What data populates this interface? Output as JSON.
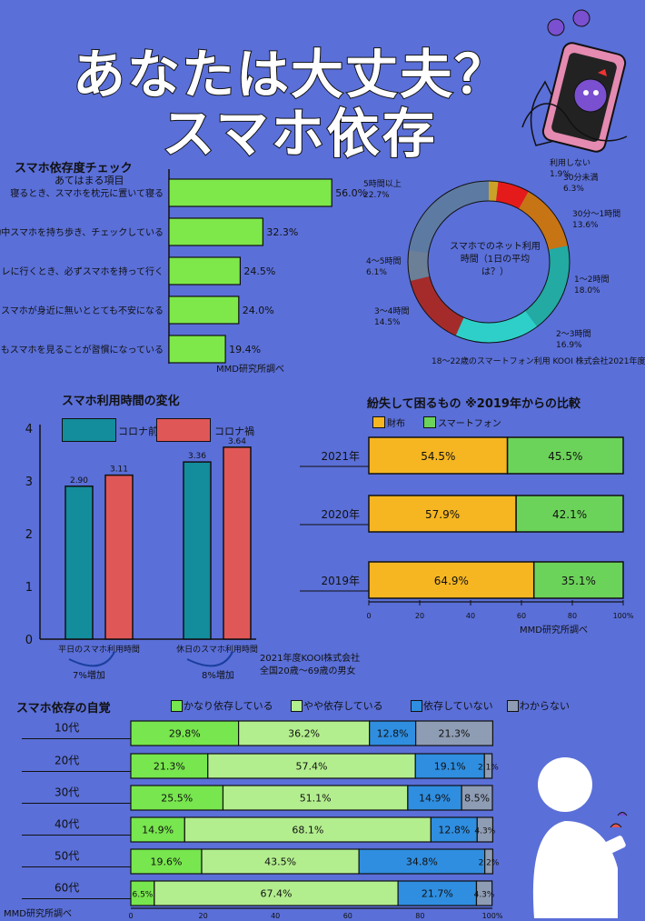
{
  "title_line1": "あなたは大丈夫？",
  "title_line2": "スマホ依存",
  "check": {
    "title": "スマホ依存度チェック",
    "subtitle": "あてはまる項目",
    "source": "MMD研究所調べ",
    "colors": {
      "bar": "#7ee84a"
    },
    "chart_data": {
      "type": "bar",
      "categories": [
        "寝るとき、スマホを枕元に置いて寝る",
        "移動中スマホを持ち歩き、チェックしている",
        "トイレに行くとき、必ずスマホを持って行く",
        "スマホが身近に無いととても不安になる",
        "食事中もスマホを見ることが習慣になっている"
      ],
      "values": [
        56.0,
        32.3,
        24.5,
        24.0,
        19.4
      ],
      "value_labels": [
        "56.0%",
        "32.3%",
        "24.5%",
        "24.0%",
        "19.4%"
      ]
    }
  },
  "donut": {
    "center_label": "スマホでのネット利用時間（1日の平均は？）",
    "source": "18～22歳のスマートフォン利用 KOOI 株式会社2021年度",
    "chart_data": {
      "type": "pie",
      "labels": [
        "利用しない",
        "30分未満",
        "30分～1時間",
        "1～2時間",
        "2～3時間",
        "3～4時間",
        "4～5時間",
        "5時間以上"
      ],
      "values": [
        1.9,
        6.3,
        13.6,
        18.0,
        16.9,
        14.5,
        6.1,
        22.7
      ],
      "value_labels": [
        "1.9%",
        "6.3%",
        "13.6%",
        "18.0%",
        "16.9%",
        "14.5%",
        "6.1%",
        "22.7%"
      ],
      "colors": [
        "#c9a227",
        "#e51b1b",
        "#c77414",
        "#22aaa3",
        "#2ecfc8",
        "#a52b2b",
        "#6b7f96",
        "#5d7ba2"
      ]
    }
  },
  "usage": {
    "title": "スマホ利用時間の変化",
    "legend_before": "コロナ前",
    "legend_after": "コロナ禍",
    "note1": "2021年度KOOI株式会社",
    "note2": "全国20歳～69歳の男女",
    "increase1": "7%増加",
    "increase2": "8%増加",
    "colors": {
      "before": "#138c9c",
      "after": "#e05757"
    },
    "chart_data": {
      "type": "bar",
      "categories": [
        "平日のスマホ利用時間",
        "休日のスマホ利用時間"
      ],
      "series": [
        {
          "name": "コロナ前",
          "values": [
            2.9,
            3.36
          ]
        },
        {
          "name": "コロナ禍",
          "values": [
            3.11,
            3.64
          ]
        }
      ],
      "value_labels": [
        [
          "2.90",
          "3.11"
        ],
        [
          "3.36",
          "3.64"
        ]
      ],
      "yticks": [
        "0",
        "1",
        "2",
        "3",
        "4"
      ],
      "ylim": [
        0,
        4
      ]
    }
  },
  "lost": {
    "title": "紛失して困るもの ※2019年からの比較",
    "legend_wallet": "財布",
    "legend_phone": "スマートフォン",
    "source": "MMD研究所調べ",
    "colors": {
      "wallet": "#f5b622",
      "phone": "#6cd35a"
    },
    "chart_data": {
      "type": "bar",
      "categories": [
        "2021年",
        "2020年",
        "2019年"
      ],
      "series": [
        {
          "name": "財布",
          "values": [
            54.5,
            57.9,
            64.9
          ]
        },
        {
          "name": "スマートフォン",
          "values": [
            45.5,
            42.1,
            35.1
          ]
        }
      ],
      "value_labels": [
        [
          "54.5%",
          "45.5%"
        ],
        [
          "57.9%",
          "42.1%"
        ],
        [
          "64.9%",
          "35.1%"
        ]
      ],
      "xticks": [
        "0",
        "20",
        "40",
        "60",
        "80",
        "100%"
      ]
    }
  },
  "awareness": {
    "title": "スマホ依存の自覚",
    "source": "MMD研究所調べ",
    "legend": [
      "かなり依存している",
      "やや依存している",
      "依存していない",
      "わからない"
    ],
    "colors": [
      "#78e64e",
      "#b3ee8e",
      "#2f8ee0",
      "#8e9cb4"
    ],
    "chart_data": {
      "type": "bar",
      "categories": [
        "10代",
        "20代",
        "30代",
        "40代",
        "50代",
        "60代"
      ],
      "series": [
        {
          "name": "かなり依存している",
          "values": [
            29.8,
            21.3,
            25.5,
            14.9,
            19.6,
            6.5
          ]
        },
        {
          "name": "やや依存している",
          "values": [
            36.2,
            57.4,
            51.1,
            68.1,
            43.5,
            67.4
          ]
        },
        {
          "name": "依存していない",
          "values": [
            12.8,
            19.1,
            14.9,
            12.8,
            34.8,
            21.7
          ]
        },
        {
          "name": "わからない",
          "values": [
            21.3,
            2.1,
            8.5,
            4.3,
            2.2,
            4.3
          ]
        }
      ],
      "value_labels": [
        [
          "29.8%",
          "36.2%",
          "12.8%",
          "21.3%"
        ],
        [
          "21.3%",
          "57.4%",
          "19.1%",
          "2.1%"
        ],
        [
          "25.5%",
          "51.1%",
          "14.9%",
          "8.5%"
        ],
        [
          "14.9%",
          "68.1%",
          "12.8%",
          "4.3%"
        ],
        [
          "19.6%",
          "43.5%",
          "34.8%",
          "2.2%"
        ],
        [
          "6.5%",
          "67.4%",
          "21.7%",
          "4.3%"
        ]
      ],
      "xticks": [
        "0",
        "20",
        "40",
        "60",
        "80",
        "100%"
      ]
    }
  }
}
